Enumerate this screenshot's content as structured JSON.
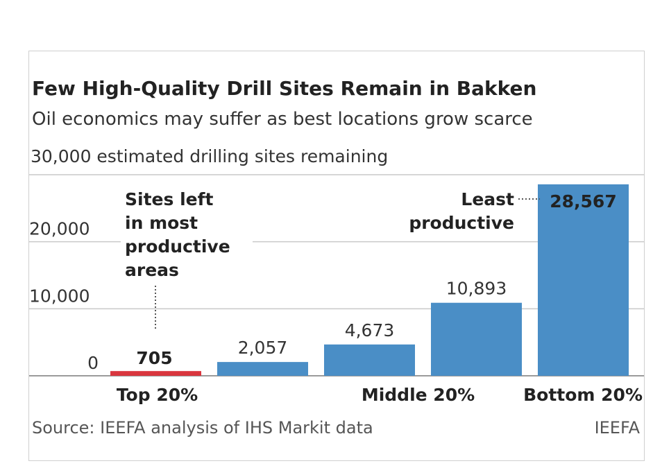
{
  "chart_data": {
    "type": "bar",
    "title": "Few High-Quality Drill Sites Remain in Bakken",
    "subtitle": "Oil economics may suffer as best locations grow scarce",
    "ylabel": "30,000 estimated drilling sites remaining",
    "ylim": [
      0,
      30000
    ],
    "yticks": [
      "0",
      "10,000",
      "20,000"
    ],
    "ytick_values": [
      0,
      10000,
      20000
    ],
    "grid": true,
    "categories": [
      "Top 20%",
      "",
      "Middle 20%",
      "",
      "Bottom 20%"
    ],
    "values": [
      705,
      2057,
      4673,
      10893,
      28567
    ],
    "value_labels": [
      "705",
      "2,057",
      "4,673",
      "10,893",
      "28,567"
    ],
    "bar_colors": [
      "#d9363e",
      "#4a8ec6",
      "#4a8ec6",
      "#4a8ec6",
      "#4a8ec6"
    ],
    "annotations": {
      "top": [
        "Sites left",
        "in most",
        "productive",
        "areas"
      ],
      "least": [
        "Least",
        "productive"
      ]
    },
    "source": "Source: IEEFA analysis of IHS Markit data",
    "credit": "IEEFA"
  }
}
